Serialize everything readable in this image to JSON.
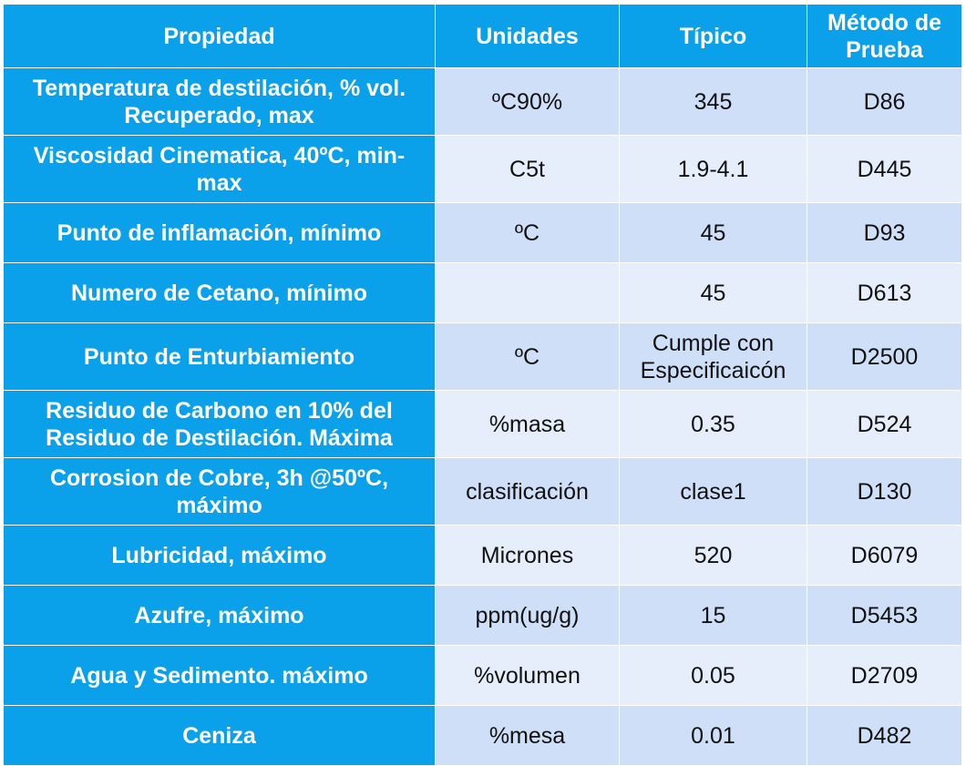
{
  "table": {
    "headers": {
      "property": "Propiedad",
      "units": "Unidades",
      "typical": "Típico",
      "method": "Método de Prueba"
    },
    "rows": [
      {
        "property": "Temperatura de destilación, % vol. Recuperado, max",
        "units": "ºC90%",
        "typical": "345",
        "method": "D86"
      },
      {
        "property": "Viscosidad Cinematica, 40ºC, min-max",
        "units": "C5t",
        "typical": "1.9-4.1",
        "method": "D445"
      },
      {
        "property": "Punto de inflamación, mínimo",
        "units": "ºC",
        "typical": "45",
        "method": "D93"
      },
      {
        "property": "Numero de Cetano, mínimo",
        "units": "",
        "typical": "45",
        "method": "D613"
      },
      {
        "property": "Punto de Enturbiamiento",
        "units": "ºC",
        "typical": "Cumple con Especificaicón",
        "method": "D2500"
      },
      {
        "property": "Residuo de Carbono en 10% del Residuo de Destilación. Máxima",
        "units": "%masa",
        "typical": "0.35",
        "method": "D524"
      },
      {
        "property": "Corrosion de Cobre, 3h @50ºC, máximo",
        "units": "clasificación",
        "typical": "clase1",
        "method": "D130"
      },
      {
        "property": "Lubricidad, máximo",
        "units": "Micrones",
        "typical": "520",
        "method": "D6079"
      },
      {
        "property": "Azufre, máximo",
        "units": "ppm(ug/g)",
        "typical": "15",
        "method": "D5453"
      },
      {
        "property": "Agua y Sedimento. máximo",
        "units": "%volumen",
        "typical": "0.05",
        "method": "D2709"
      },
      {
        "property": "Ceniza",
        "units": "%mesa",
        "typical": "0.01",
        "method": "D482"
      }
    ]
  }
}
